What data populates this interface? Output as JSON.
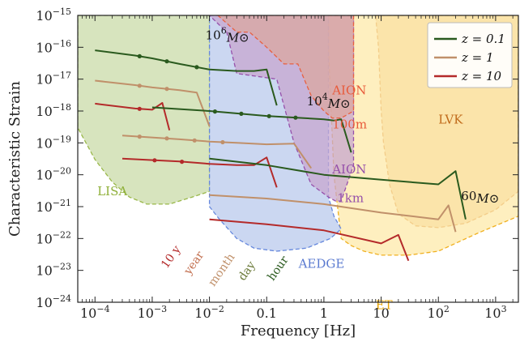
{
  "chart_data": {
    "type": "line",
    "title": "",
    "xlabel": "Frequency [Hz]",
    "ylabel": "Characteristic Strain",
    "x_scale": "log",
    "y_scale": "log",
    "xlim": [
      5e-05,
      2500
    ],
    "ylim": [
      1e-24,
      1e-15
    ],
    "x_ticks": [
      {
        "value": 0.0001,
        "base": "10",
        "exp": "−4"
      },
      {
        "value": 0.001,
        "base": "10",
        "exp": "−3"
      },
      {
        "value": 0.01,
        "base": "10",
        "exp": "−2"
      },
      {
        "value": 0.1,
        "base": "0.1",
        "exp": ""
      },
      {
        "value": 1,
        "base": "1",
        "exp": ""
      },
      {
        "value": 10,
        "base": "10",
        "exp": ""
      },
      {
        "value": 100,
        "base": "10",
        "exp": "2"
      },
      {
        "value": 1000,
        "base": "10",
        "exp": "3"
      }
    ],
    "y_ticks": [
      {
        "value": 1e-24,
        "base": "10",
        "exp": "−24"
      },
      {
        "value": 1e-23,
        "base": "10",
        "exp": "−23"
      },
      {
        "value": 1e-22,
        "base": "10",
        "exp": "−22"
      },
      {
        "value": 1e-21,
        "base": "10",
        "exp": "−21"
      },
      {
        "value": 1e-20,
        "base": "10",
        "exp": "−20"
      },
      {
        "value": 1e-19,
        "base": "10",
        "exp": "−19"
      },
      {
        "value": 1e-18,
        "base": "10",
        "exp": "−18"
      },
      {
        "value": 1e-17,
        "base": "10",
        "exp": "−17"
      },
      {
        "value": 1e-16,
        "base": "10",
        "exp": "−16"
      },
      {
        "value": 1e-15,
        "base": "10",
        "exp": "−15"
      }
    ],
    "legend": {
      "position": "top-right",
      "entries": [
        {
          "label": "z = 0.1",
          "color": "#2a5a1e"
        },
        {
          "label": "z = 1",
          "color": "#c0906a"
        },
        {
          "label": "z = 10",
          "color": "#b42a2a"
        }
      ]
    },
    "regions": [
      {
        "name": "LISA",
        "fill": "#c9dba8",
        "edge": "#9ab84a",
        "boundary": [
          [
            5e-05,
            1e-15
          ],
          [
            0.01,
            1e-15
          ],
          [
            0.01,
            3e-21
          ],
          [
            0.005,
            2e-21
          ],
          [
            0.002,
            1.2e-21
          ],
          [
            0.0008,
            1.2e-21
          ],
          [
            0.0004,
            2e-21
          ],
          [
            0.0002,
            6e-21
          ],
          [
            0.0001,
            3e-20
          ],
          [
            5e-05,
            3e-19
          ]
        ]
      },
      {
        "name": "AEDGE",
        "fill": "#b9c9ec",
        "edge": "#6688dd",
        "boundary": [
          [
            0.01,
            1e-15
          ],
          [
            1.2,
            1e-15
          ],
          [
            1.2,
            2e-21
          ],
          [
            1.5,
            5e-22
          ],
          [
            2,
            2e-22
          ],
          [
            1.3,
            1e-22
          ],
          [
            0.5,
            5e-23
          ],
          [
            0.15,
            4e-23
          ],
          [
            0.06,
            5e-23
          ],
          [
            0.03,
            1e-22
          ],
          [
            0.015,
            4e-22
          ],
          [
            0.01,
            1e-21
          ]
        ]
      },
      {
        "name": "AION 1km",
        "fill": "#c7a7cf",
        "edge": "#9650aa",
        "boundary": [
          [
            0.01,
            1e-15
          ],
          [
            3.3,
            1e-15
          ],
          [
            3.3,
            2e-20
          ],
          [
            2,
            1.5e-21
          ],
          [
            1.6,
            1.5e-21
          ],
          [
            1.2,
            2e-21
          ],
          [
            0.6,
            5e-21
          ],
          [
            0.3,
            1e-19
          ],
          [
            0.15,
            1e-17
          ],
          [
            0.03,
            1.5e-17
          ],
          [
            0.02,
            3e-16
          ],
          [
            0.01,
            1e-15
          ]
        ]
      },
      {
        "name": "AION 100m",
        "fill": "#dba7a0",
        "edge": "#e86040",
        "boundary": [
          [
            0.014,
            1e-15
          ],
          [
            3.3,
            1e-15
          ],
          [
            3.3,
            1e-18
          ],
          [
            2,
            6e-19
          ],
          [
            1.4,
            6e-19
          ],
          [
            1,
            1e-18
          ],
          [
            0.6,
            3e-18
          ],
          [
            0.35,
            3e-17
          ],
          [
            0.2,
            3e-17
          ],
          [
            0.1,
            1e-16
          ],
          [
            0.05,
            3e-16
          ],
          [
            0.03,
            3e-16
          ],
          [
            0.014,
            1e-15
          ]
        ]
      },
      {
        "name": "ET",
        "fill": "#fde9aa",
        "edge": "#f0b020",
        "boundary": [
          [
            1.2,
            1e-15
          ],
          [
            2500,
            1e-15
          ],
          [
            2500,
            5e-22
          ],
          [
            500,
            1.5e-22
          ],
          [
            100,
            4e-23
          ],
          [
            30,
            3e-23
          ],
          [
            10,
            3e-23
          ],
          [
            5,
            4e-23
          ],
          [
            3,
            6e-23
          ],
          [
            2,
            1e-22
          ],
          [
            1.5,
            1e-20
          ],
          [
            1.2,
            1e-16
          ]
        ]
      },
      {
        "name": "LVK",
        "fill": "#efc592",
        "edge": "#d4782a",
        "boundary": [
          [
            8,
            1e-15
          ],
          [
            2500,
            1e-15
          ],
          [
            2500,
            3e-21
          ],
          [
            1000,
            8e-22
          ],
          [
            300,
            3e-22
          ],
          [
            100,
            2.2e-22
          ],
          [
            40,
            2.5e-22
          ],
          [
            20,
            6e-22
          ],
          [
            14,
            5e-21
          ],
          [
            11,
            1e-19
          ],
          [
            10,
            1e-18
          ],
          [
            9,
            1e-16
          ],
          [
            8,
            1e-15
          ]
        ]
      }
    ],
    "series": [
      {
        "color": "#2a5a1e",
        "x": [
          0.0001,
          0.0005,
          0.001,
          0.003,
          0.01,
          0.03,
          0.06,
          0.1,
          0.15
        ],
        "y": [
          8e-17,
          5.5e-17,
          4.5e-17,
          3e-17,
          2e-17,
          1.8e-17,
          1.8e-17,
          2e-17,
          1.5e-18
        ],
        "markers": [
          0.0006,
          0.0018,
          0.006
        ]
      },
      {
        "color": "#c0906a",
        "x": [
          0.0001,
          0.0005,
          0.001,
          0.003,
          0.006,
          0.01
        ],
        "y": [
          9e-18,
          6.5e-18,
          5.5e-18,
          4.5e-18,
          3.8e-18,
          3.3e-19
        ],
        "markers": [
          0.0006,
          0.0018
        ]
      },
      {
        "color": "#b42a2a",
        "x": [
          0.0001,
          0.0005,
          0.001,
          0.0015,
          0.002
        ],
        "y": [
          1.7e-18,
          1.2e-18,
          1.1e-18,
          1.8e-18,
          2.5e-19
        ],
        "markers": [
          0.0006
        ]
      },
      {
        "color": "#2a5a1e",
        "x": [
          0.001,
          0.01,
          0.1,
          1,
          1.5,
          2,
          3
        ],
        "y": [
          1.3e-18,
          1e-18,
          7e-19,
          5.5e-19,
          5e-19,
          5.5e-19,
          5e-20
        ],
        "markers": [
          0.0125,
          0.036,
          0.11,
          0.32
        ]
      },
      {
        "color": "#c0906a",
        "x": [
          0.0003,
          0.003,
          0.01,
          0.03,
          0.1,
          0.3,
          0.6
        ],
        "y": [
          1.7e-19,
          1.3e-19,
          1.1e-19,
          1e-19,
          9e-20,
          9.5e-20,
          1.6e-20
        ],
        "markers": [
          0.0006,
          0.0018,
          0.0055,
          0.017
        ]
      },
      {
        "color": "#b42a2a",
        "x": [
          0.0003,
          0.003,
          0.01,
          0.03,
          0.06,
          0.1,
          0.15
        ],
        "y": [
          3.2e-20,
          2.6e-20,
          2.2e-20,
          2e-20,
          2e-20,
          3.5e-20,
          4e-21
        ],
        "markers": [
          0.0011,
          0.0033
        ]
      },
      {
        "color": "#2a5a1e",
        "x": [
          0.01,
          0.1,
          1,
          10,
          100,
          200,
          300
        ],
        "y": [
          3.2e-20,
          2e-20,
          1e-20,
          7e-21,
          5e-21,
          1.3e-20,
          4e-22
        ],
        "markers": []
      },
      {
        "color": "#c0906a",
        "x": [
          0.01,
          0.1,
          1,
          10,
          100,
          150,
          200
        ],
        "y": [
          2.3e-21,
          1.8e-21,
          1.2e-21,
          6.5e-22,
          4e-22,
          1.1e-21,
          1.6e-22
        ],
        "markers": []
      },
      {
        "color": "#b42a2a",
        "x": [
          0.01,
          0.1,
          1,
          10,
          20,
          30
        ],
        "y": [
          4e-22,
          2.8e-22,
          1.8e-22,
          7e-23,
          1.3e-22,
          2e-23
        ],
        "markers": []
      }
    ],
    "annotations": [
      {
        "text": "LISA",
        "color": "#8fb03a",
        "x": 0.00011,
        "y": 2.3e-21,
        "rotate": 0,
        "size": 15
      },
      {
        "text": "AEDGE",
        "color": "#5a7ad0",
        "x": 0.36,
        "y": 1.2e-23,
        "rotate": 0,
        "size": 15
      },
      {
        "text": "AION",
        "color": "#e85a3a",
        "x": 1.4,
        "y": 3.3e-18,
        "rotate": 0,
        "size": 15
      },
      {
        "text": "100m",
        "color": "#e85a3a",
        "x": 1.4,
        "y": 2.8e-19,
        "rotate": 0,
        "size": 15
      },
      {
        "text": "AION",
        "color": "#9650aa",
        "x": 1.4,
        "y": 1.1e-20,
        "rotate": 0,
        "size": 15
      },
      {
        "text": "1km",
        "color": "#9650aa",
        "x": 1.7,
        "y": 1.4e-21,
        "rotate": 0,
        "size": 15
      },
      {
        "text": "LVK",
        "color": "#c06a1a",
        "x": 100,
        "y": 4e-19,
        "rotate": 0,
        "size": 15
      },
      {
        "text": "ET",
        "color": "#e8a400",
        "x": 8,
        "y": 6e-25,
        "rotate": 0,
        "size": 15
      },
      {
        "text": "10 y",
        "color": "#b42a2a",
        "x": 0.0018,
        "y": 1.1e-23,
        "rotate": -55,
        "size": 14
      },
      {
        "text": "year",
        "color": "#c27050",
        "x": 0.0045,
        "y": 7e-24,
        "rotate": -55,
        "size": 14
      },
      {
        "text": "month",
        "color": "#c0906a",
        "x": 0.012,
        "y": 3e-24,
        "rotate": -55,
        "size": 14
      },
      {
        "text": "day",
        "color": "#6b7a3a",
        "x": 0.04,
        "y": 4.5e-24,
        "rotate": -55,
        "size": 14
      },
      {
        "text": "hour",
        "color": "#2a5a1e",
        "x": 0.13,
        "y": 4.5e-24,
        "rotate": -55,
        "size": 14
      }
    ],
    "mass_labels": [
      {
        "base": "10",
        "exp": "6",
        "sub": "M⊙",
        "x": 0.0085,
        "y": 1.8e-16
      },
      {
        "base": "10",
        "exp": "4",
        "sub": "M⊙",
        "x": 0.5,
        "y": 1.5e-18
      },
      {
        "base": "60",
        "exp": "",
        "sub": "M⊙",
        "x": 250,
        "y": 1.6e-21
      }
    ]
  }
}
